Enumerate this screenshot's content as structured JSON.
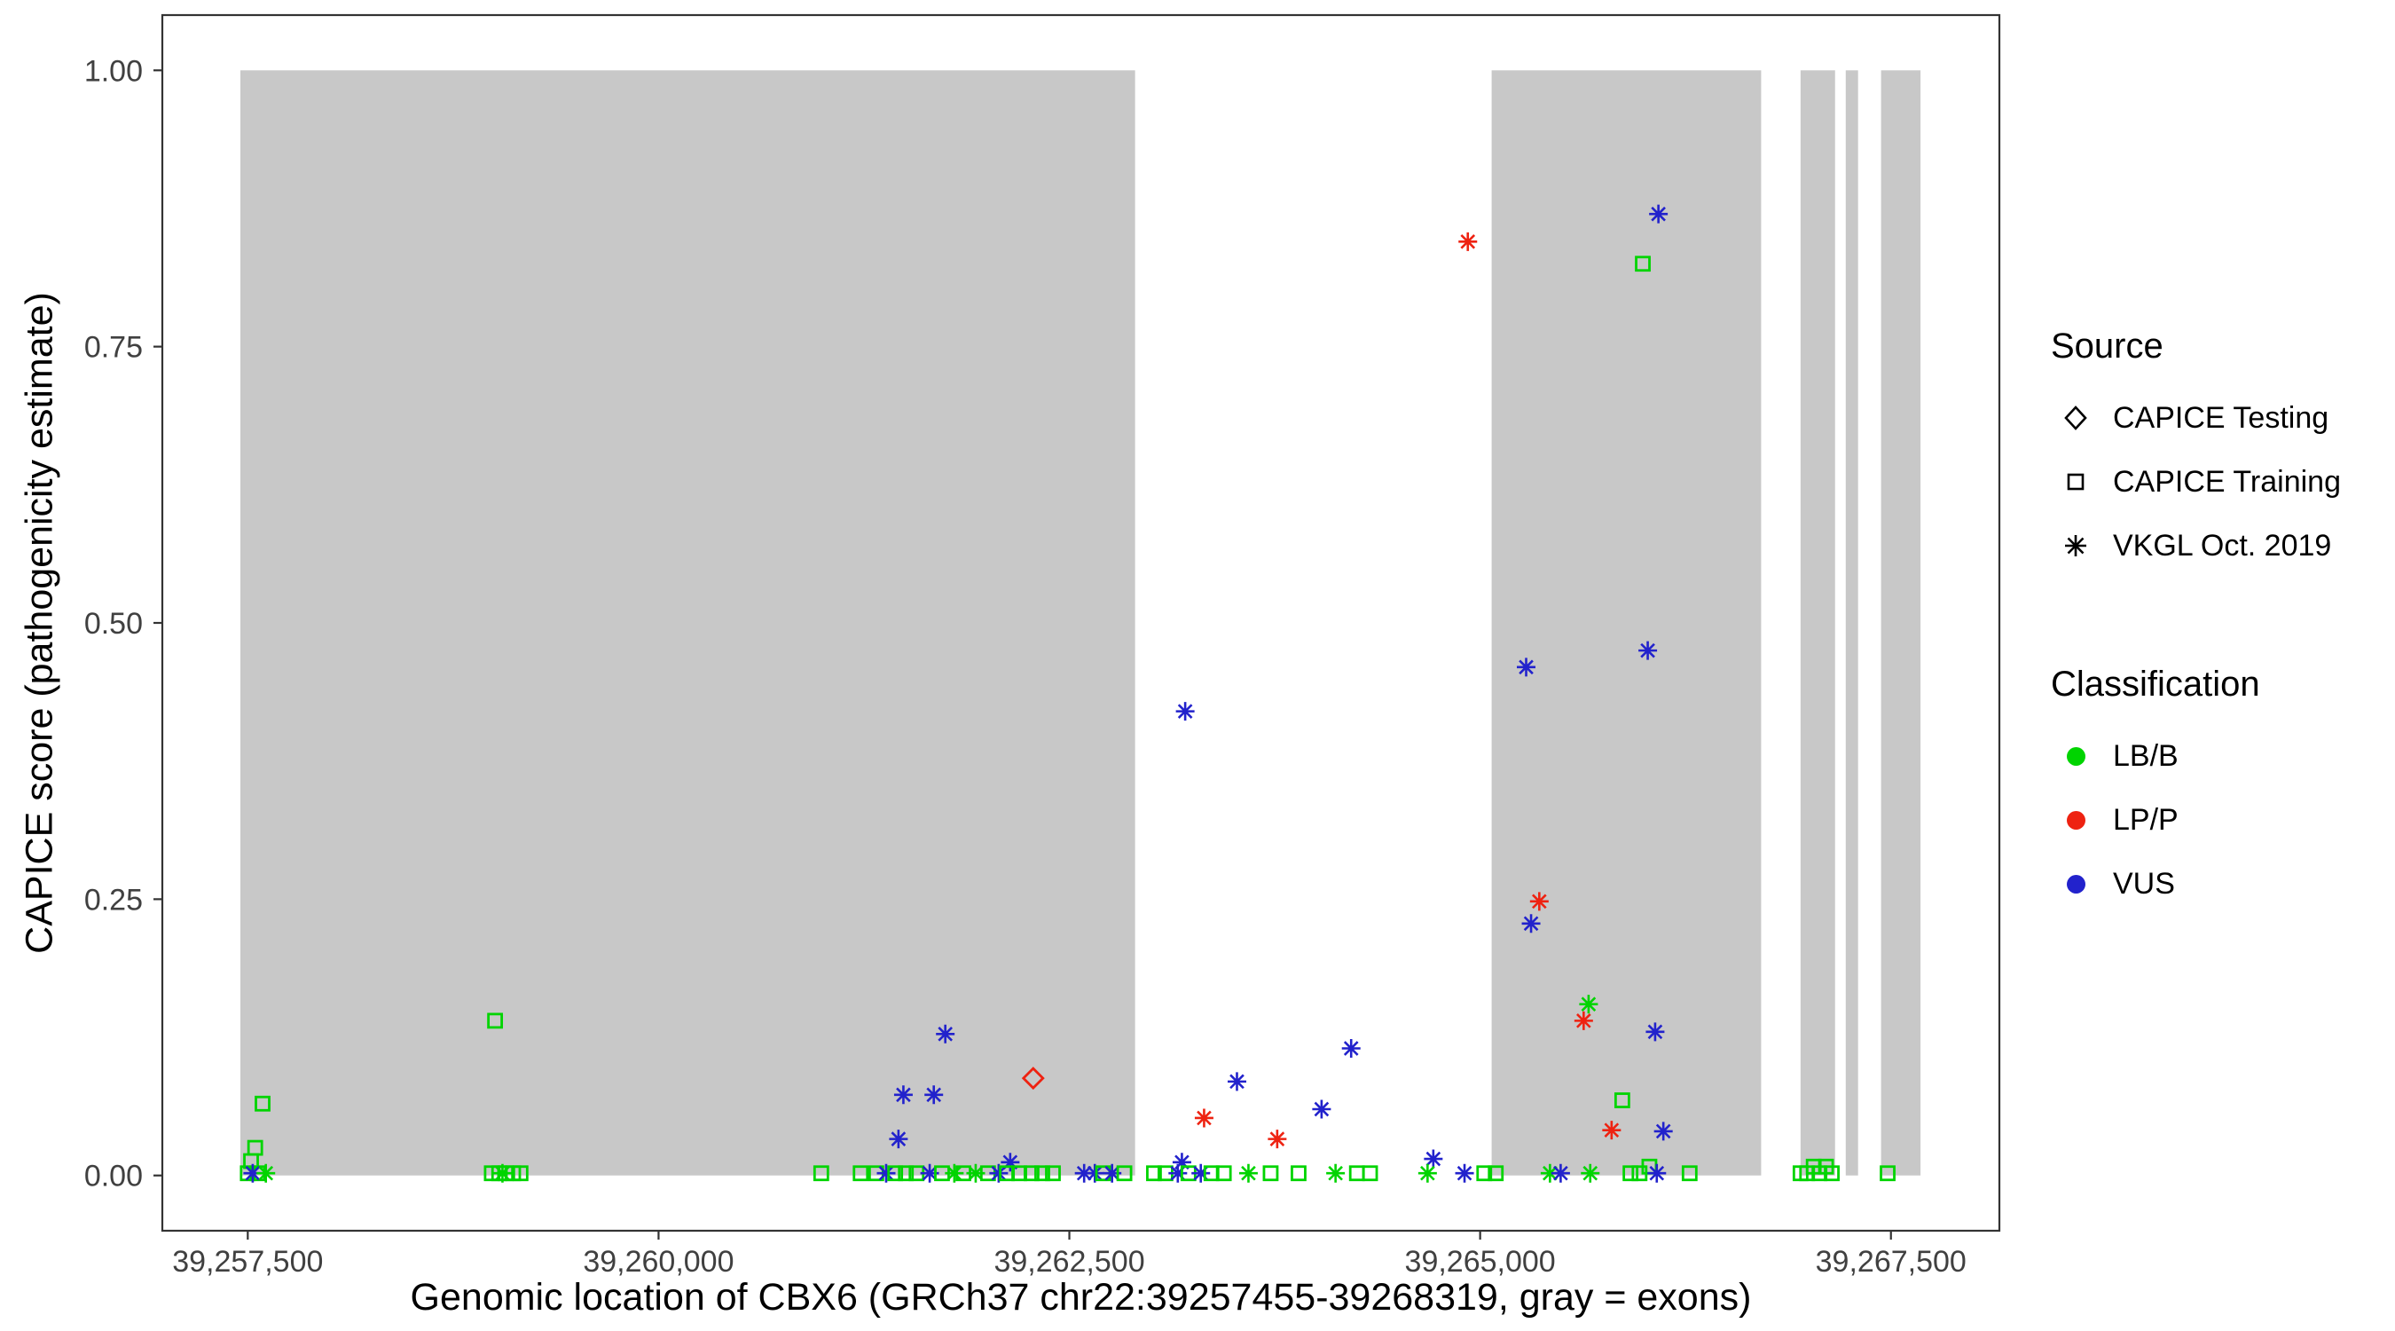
{
  "figure": {
    "background": "#ffffff",
    "panel_border": "#333333",
    "exon_fill": "#c8c8c8",
    "tick_color": "#333333",
    "tick_label_color": "#404040"
  },
  "axes": {
    "x_label": "Genomic location of CBX6 (GRCh37 chr22:39257455-39268319, gray = exons)",
    "y_label": "CAPICE score (pathogenicity estimate)",
    "x_ticks": [
      39257500,
      39260000,
      39262500,
      39265000,
      39267500
    ],
    "x_tick_labels": [
      "39,257,500",
      "39,260,000",
      "39,262,500",
      "39,265,000",
      "39,267,500"
    ],
    "y_ticks": [
      0,
      0.25,
      0.5,
      0.75,
      1.0
    ],
    "y_tick_labels": [
      "0.00",
      "0.25",
      "0.50",
      "0.75",
      "1.00"
    ]
  },
  "legend": {
    "source_title": "Source",
    "source_items": [
      {
        "label": "CAPICE Testing",
        "shape": "diamond"
      },
      {
        "label": "CAPICE Training",
        "shape": "square"
      },
      {
        "label": "VKGL Oct. 2019",
        "shape": "asterisk"
      }
    ],
    "classification_title": "Classification",
    "classification_items": [
      {
        "label": "LB/B",
        "color": "#00d400"
      },
      {
        "label": "LP/P",
        "color": "#ee2211"
      },
      {
        "label": "VUS",
        "color": "#2222cc"
      }
    ]
  },
  "chart_data": {
    "type": "scatter",
    "title": "",
    "xlabel": "Genomic location of CBX6 (GRCh37 chr22:39257455-39268319, gray = exons)",
    "ylabel": "CAPICE score (pathogenicity estimate)",
    "xlim": [
      39256980,
      39268160
    ],
    "ylim": [
      -0.05,
      1.05
    ],
    "grid": false,
    "legend_position": "right",
    "colors": {
      "LB/B": "#00d400",
      "LP/P": "#ee2211",
      "VUS": "#2222cc"
    },
    "shapes": {
      "CAPICE Testing": "diamond",
      "CAPICE Training": "square",
      "VKGL Oct. 2019": "asterisk"
    },
    "exons": [
      [
        39257455,
        39262900
      ],
      [
        39265070,
        39266710
      ],
      [
        39266950,
        39267160
      ],
      [
        39267225,
        39267300
      ],
      [
        39267440,
        39267680
      ]
    ],
    "points": [
      {
        "x": 39266085,
        "y": 0.87,
        "c": "VUS",
        "s": "asterisk"
      },
      {
        "x": 39264925,
        "y": 0.845,
        "c": "LP/P",
        "s": "asterisk"
      },
      {
        "x": 39265990,
        "y": 0.825,
        "c": "LB/B",
        "s": "square"
      },
      {
        "x": 39266020,
        "y": 0.475,
        "c": "VUS",
        "s": "asterisk"
      },
      {
        "x": 39265280,
        "y": 0.46,
        "c": "VUS",
        "s": "asterisk"
      },
      {
        "x": 39263205,
        "y": 0.42,
        "c": "VUS",
        "s": "asterisk"
      },
      {
        "x": 39265360,
        "y": 0.248,
        "c": "LP/P",
        "s": "asterisk"
      },
      {
        "x": 39265310,
        "y": 0.228,
        "c": "VUS",
        "s": "asterisk"
      },
      {
        "x": 39265660,
        "y": 0.155,
        "c": "LB/B",
        "s": "asterisk"
      },
      {
        "x": 39265630,
        "y": 0.14,
        "c": "LP/P",
        "s": "asterisk"
      },
      {
        "x": 39259005,
        "y": 0.14,
        "c": "LB/B",
        "s": "square"
      },
      {
        "x": 39266065,
        "y": 0.13,
        "c": "VUS",
        "s": "asterisk"
      },
      {
        "x": 39261745,
        "y": 0.128,
        "c": "VUS",
        "s": "asterisk"
      },
      {
        "x": 39264215,
        "y": 0.115,
        "c": "VUS",
        "s": "asterisk"
      },
      {
        "x": 39262280,
        "y": 0.088,
        "c": "LP/P",
        "s": "diamond"
      },
      {
        "x": 39263520,
        "y": 0.085,
        "c": "VUS",
        "s": "asterisk"
      },
      {
        "x": 39261490,
        "y": 0.073,
        "c": "VUS",
        "s": "asterisk"
      },
      {
        "x": 39261675,
        "y": 0.073,
        "c": "VUS",
        "s": "asterisk"
      },
      {
        "x": 39265865,
        "y": 0.068,
        "c": "LB/B",
        "s": "square"
      },
      {
        "x": 39257590,
        "y": 0.065,
        "c": "LB/B",
        "s": "square"
      },
      {
        "x": 39264035,
        "y": 0.06,
        "c": "VUS",
        "s": "asterisk"
      },
      {
        "x": 39263320,
        "y": 0.052,
        "c": "LP/P",
        "s": "asterisk"
      },
      {
        "x": 39265800,
        "y": 0.041,
        "c": "LP/P",
        "s": "asterisk"
      },
      {
        "x": 39266115,
        "y": 0.04,
        "c": "VUS",
        "s": "asterisk"
      },
      {
        "x": 39263765,
        "y": 0.033,
        "c": "LP/P",
        "s": "asterisk"
      },
      {
        "x": 39261460,
        "y": 0.033,
        "c": "VUS",
        "s": "asterisk"
      },
      {
        "x": 39257545,
        "y": 0.025,
        "c": "LB/B",
        "s": "square"
      },
      {
        "x": 39264715,
        "y": 0.015,
        "c": "VUS",
        "s": "asterisk"
      },
      {
        "x": 39257520,
        "y": 0.013,
        "c": "LB/B",
        "s": "square"
      },
      {
        "x": 39262140,
        "y": 0.012,
        "c": "VUS",
        "s": "asterisk"
      },
      {
        "x": 39263185,
        "y": 0.012,
        "c": "VUS",
        "s": "asterisk"
      },
      {
        "x": 39257500,
        "y": 0.002,
        "c": "LB/B",
        "s": "square"
      },
      {
        "x": 39257560,
        "y": 0.002,
        "c": "LB/B",
        "s": "square"
      },
      {
        "x": 39257530,
        "y": 0.002,
        "c": "VUS",
        "s": "asterisk"
      },
      {
        "x": 39257610,
        "y": 0.002,
        "c": "LB/B",
        "s": "asterisk"
      },
      {
        "x": 39258985,
        "y": 0.002,
        "c": "LB/B",
        "s": "square"
      },
      {
        "x": 39259030,
        "y": 0.002,
        "c": "LB/B",
        "s": "square"
      },
      {
        "x": 39259070,
        "y": 0.002,
        "c": "LB/B",
        "s": "square"
      },
      {
        "x": 39259115,
        "y": 0.002,
        "c": "LB/B",
        "s": "square"
      },
      {
        "x": 39259160,
        "y": 0.002,
        "c": "LB/B",
        "s": "square"
      },
      {
        "x": 39259050,
        "y": 0.002,
        "c": "LB/B",
        "s": "asterisk"
      },
      {
        "x": 39260990,
        "y": 0.002,
        "c": "LB/B",
        "s": "square"
      },
      {
        "x": 39261230,
        "y": 0.002,
        "c": "LB/B",
        "s": "square"
      },
      {
        "x": 39261325,
        "y": 0.002,
        "c": "LB/B",
        "s": "square"
      },
      {
        "x": 39261385,
        "y": 0.002,
        "c": "VUS",
        "s": "asterisk"
      },
      {
        "x": 39261440,
        "y": 0.002,
        "c": "LB/B",
        "s": "square"
      },
      {
        "x": 39261505,
        "y": 0.002,
        "c": "LB/B",
        "s": "square"
      },
      {
        "x": 39261570,
        "y": 0.002,
        "c": "LB/B",
        "s": "square"
      },
      {
        "x": 39261650,
        "y": 0.002,
        "c": "VUS",
        "s": "asterisk"
      },
      {
        "x": 39261725,
        "y": 0.002,
        "c": "LB/B",
        "s": "square"
      },
      {
        "x": 39261800,
        "y": 0.002,
        "c": "LB/B",
        "s": "asterisk"
      },
      {
        "x": 39261855,
        "y": 0.002,
        "c": "LB/B",
        "s": "square"
      },
      {
        "x": 39261930,
        "y": 0.002,
        "c": "LB/B",
        "s": "asterisk"
      },
      {
        "x": 39262005,
        "y": 0.002,
        "c": "LB/B",
        "s": "square"
      },
      {
        "x": 39262070,
        "y": 0.002,
        "c": "VUS",
        "s": "asterisk"
      },
      {
        "x": 39262120,
        "y": 0.002,
        "c": "LB/B",
        "s": "square"
      },
      {
        "x": 39262195,
        "y": 0.002,
        "c": "LB/B",
        "s": "square"
      },
      {
        "x": 39262270,
        "y": 0.002,
        "c": "LB/B",
        "s": "square"
      },
      {
        "x": 39262335,
        "y": 0.002,
        "c": "LB/B",
        "s": "square"
      },
      {
        "x": 39262400,
        "y": 0.002,
        "c": "LB/B",
        "s": "square"
      },
      {
        "x": 39262590,
        "y": 0.002,
        "c": "VUS",
        "s": "asterisk"
      },
      {
        "x": 39262655,
        "y": 0.002,
        "c": "VUS",
        "s": "asterisk"
      },
      {
        "x": 39262705,
        "y": 0.002,
        "c": "LB/B",
        "s": "square"
      },
      {
        "x": 39262760,
        "y": 0.002,
        "c": "VUS",
        "s": "asterisk"
      },
      {
        "x": 39262835,
        "y": 0.002,
        "c": "LB/B",
        "s": "square"
      },
      {
        "x": 39263015,
        "y": 0.002,
        "c": "LB/B",
        "s": "square"
      },
      {
        "x": 39263085,
        "y": 0.002,
        "c": "LB/B",
        "s": "square"
      },
      {
        "x": 39263160,
        "y": 0.002,
        "c": "VUS",
        "s": "asterisk"
      },
      {
        "x": 39263225,
        "y": 0.002,
        "c": "LB/B",
        "s": "square"
      },
      {
        "x": 39263300,
        "y": 0.002,
        "c": "VUS",
        "s": "asterisk"
      },
      {
        "x": 39263365,
        "y": 0.002,
        "c": "LB/B",
        "s": "square"
      },
      {
        "x": 39263440,
        "y": 0.002,
        "c": "LB/B",
        "s": "square"
      },
      {
        "x": 39263590,
        "y": 0.002,
        "c": "LB/B",
        "s": "asterisk"
      },
      {
        "x": 39263725,
        "y": 0.002,
        "c": "LB/B",
        "s": "square"
      },
      {
        "x": 39263895,
        "y": 0.002,
        "c": "LB/B",
        "s": "square"
      },
      {
        "x": 39264120,
        "y": 0.002,
        "c": "LB/B",
        "s": "asterisk"
      },
      {
        "x": 39264250,
        "y": 0.002,
        "c": "LB/B",
        "s": "square"
      },
      {
        "x": 39264330,
        "y": 0.002,
        "c": "LB/B",
        "s": "square"
      },
      {
        "x": 39264680,
        "y": 0.002,
        "c": "LB/B",
        "s": "asterisk"
      },
      {
        "x": 39264905,
        "y": 0.002,
        "c": "VUS",
        "s": "asterisk"
      },
      {
        "x": 39265025,
        "y": 0.002,
        "c": "LB/B",
        "s": "square"
      },
      {
        "x": 39265095,
        "y": 0.002,
        "c": "LB/B",
        "s": "square"
      },
      {
        "x": 39265425,
        "y": 0.002,
        "c": "LB/B",
        "s": "asterisk"
      },
      {
        "x": 39265490,
        "y": 0.002,
        "c": "VUS",
        "s": "asterisk"
      },
      {
        "x": 39265670,
        "y": 0.002,
        "c": "LB/B",
        "s": "asterisk"
      },
      {
        "x": 39265915,
        "y": 0.002,
        "c": "LB/B",
        "s": "square"
      },
      {
        "x": 39265970,
        "y": 0.002,
        "c": "LB/B",
        "s": "square"
      },
      {
        "x": 39266030,
        "y": 0.008,
        "c": "LB/B",
        "s": "square"
      },
      {
        "x": 39266075,
        "y": 0.002,
        "c": "VUS",
        "s": "asterisk"
      },
      {
        "x": 39266275,
        "y": 0.002,
        "c": "LB/B",
        "s": "square"
      },
      {
        "x": 39266950,
        "y": 0.002,
        "c": "LB/B",
        "s": "square"
      },
      {
        "x": 39266990,
        "y": 0.002,
        "c": "LB/B",
        "s": "square"
      },
      {
        "x": 39267030,
        "y": 0.008,
        "c": "LB/B",
        "s": "square"
      },
      {
        "x": 39267065,
        "y": 0.002,
        "c": "LB/B",
        "s": "square"
      },
      {
        "x": 39267105,
        "y": 0.008,
        "c": "LB/B",
        "s": "square"
      },
      {
        "x": 39267140,
        "y": 0.002,
        "c": "LB/B",
        "s": "square"
      },
      {
        "x": 39267480,
        "y": 0.002,
        "c": "LB/B",
        "s": "square"
      }
    ]
  }
}
